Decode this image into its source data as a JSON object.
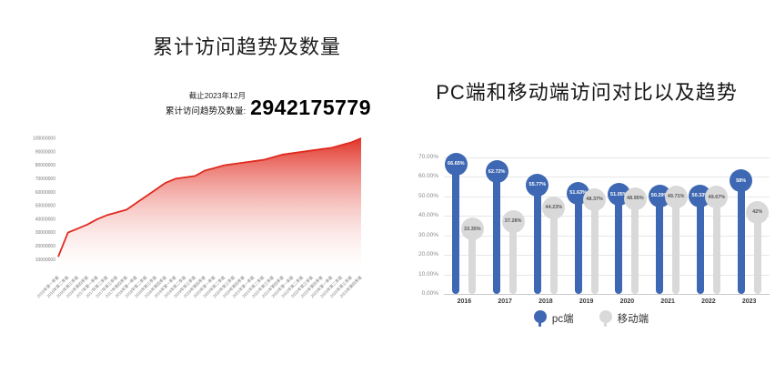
{
  "left_chart": {
    "title": "累计访问趋势及数量",
    "annotation": {
      "date_note": "截止2023年12月",
      "label": "累计访问趋势及数量:",
      "total": "2942175779"
    }
  },
  "right_chart": {
    "title": "PC端和移动端访问对比以及趋势",
    "legend": [
      {
        "label": "pc端",
        "color": "#3e68b3"
      },
      {
        "label": "移动端",
        "color": "#d9d9d9"
      }
    ]
  },
  "chart_data": [
    {
      "type": "area",
      "title": "累计访问趋势及数量",
      "line_color": "#e02a1e",
      "fill_from": "#e02a1e",
      "fill_to": "#ffffff",
      "ylim": [
        0,
        100000000
      ],
      "yticks": [
        100000000,
        90000000,
        80000000,
        70000000,
        60000000,
        50000000,
        40000000,
        30000000,
        20000000,
        10000000
      ],
      "x": [
        "2016年第一季度",
        "2016年第二季度",
        "2016年第三季度",
        "2016年第四季度",
        "2017年第一季度",
        "2017年第二季度",
        "2017年第三季度",
        "2017年第四季度",
        "2018年第一季度",
        "2018年第二季度",
        "2018年第三季度",
        "2018年第四季度",
        "2019年第一季度",
        "2019年第二季度",
        "2019年第三季度",
        "2019年第四季度",
        "2020年第一季度",
        "2020年第二季度",
        "2020年第三季度",
        "2020年第四季度",
        "2021年第一季度",
        "2021年第二季度",
        "2021年第三季度",
        "2021年第四季度",
        "2022年第一季度",
        "2022年第二季度",
        "2022年第三季度",
        "2022年第四季度",
        "2023年第一季度",
        "2023年第二季度",
        "2023年第三季度",
        "2023年第四季度"
      ],
      "values": [
        12000000,
        30000000,
        33000000,
        36000000,
        40000000,
        43000000,
        45000000,
        47000000,
        52000000,
        57000000,
        62000000,
        67000000,
        70000000,
        71000000,
        72000000,
        76000000,
        78000000,
        80000000,
        81000000,
        82000000,
        83000000,
        84000000,
        86000000,
        88000000,
        89000000,
        90000000,
        91000000,
        92000000,
        93000000,
        95000000,
        97000000,
        100000000
      ]
    },
    {
      "type": "lollipop",
      "title": "PC端和移动端访问对比以及趋势",
      "categories": [
        "2016",
        "2017",
        "2018",
        "2019",
        "2020",
        "2021",
        "2022",
        "2023"
      ],
      "ylim": [
        0,
        70
      ],
      "ytick_values": [
        70,
        60,
        50,
        40,
        30,
        20,
        10,
        0
      ],
      "ytick_labels": [
        "70.00%",
        "60.00%",
        "50.00%",
        "40.00%",
        "30.00%",
        "20.00%",
        "10.00%",
        "0.00%"
      ],
      "series": [
        {
          "name": "pc端",
          "color": "#3e68b3",
          "text_color": "#ffffff",
          "values": [
            66.65,
            62.72,
            55.77,
            51.63,
            51.05,
            50.29,
            50.33,
            58
          ],
          "labels": [
            "66.65%",
            "62.72%",
            "55.77%",
            "51.63%",
            "51.05%",
            "50.29%",
            "50.33%",
            "58%"
          ]
        },
        {
          "name": "移动端",
          "color": "#d9d9d9",
          "text_color": "#595959",
          "values": [
            33.35,
            37.28,
            44.23,
            48.37,
            48.95,
            49.71,
            49.67,
            42
          ],
          "labels": [
            "33.35%",
            "37.28%",
            "44.23%",
            "48.37%",
            "48.95%",
            "49.71%",
            "49.67%",
            "42%"
          ]
        }
      ],
      "legend_position": "bottom",
      "grid": true
    }
  ]
}
